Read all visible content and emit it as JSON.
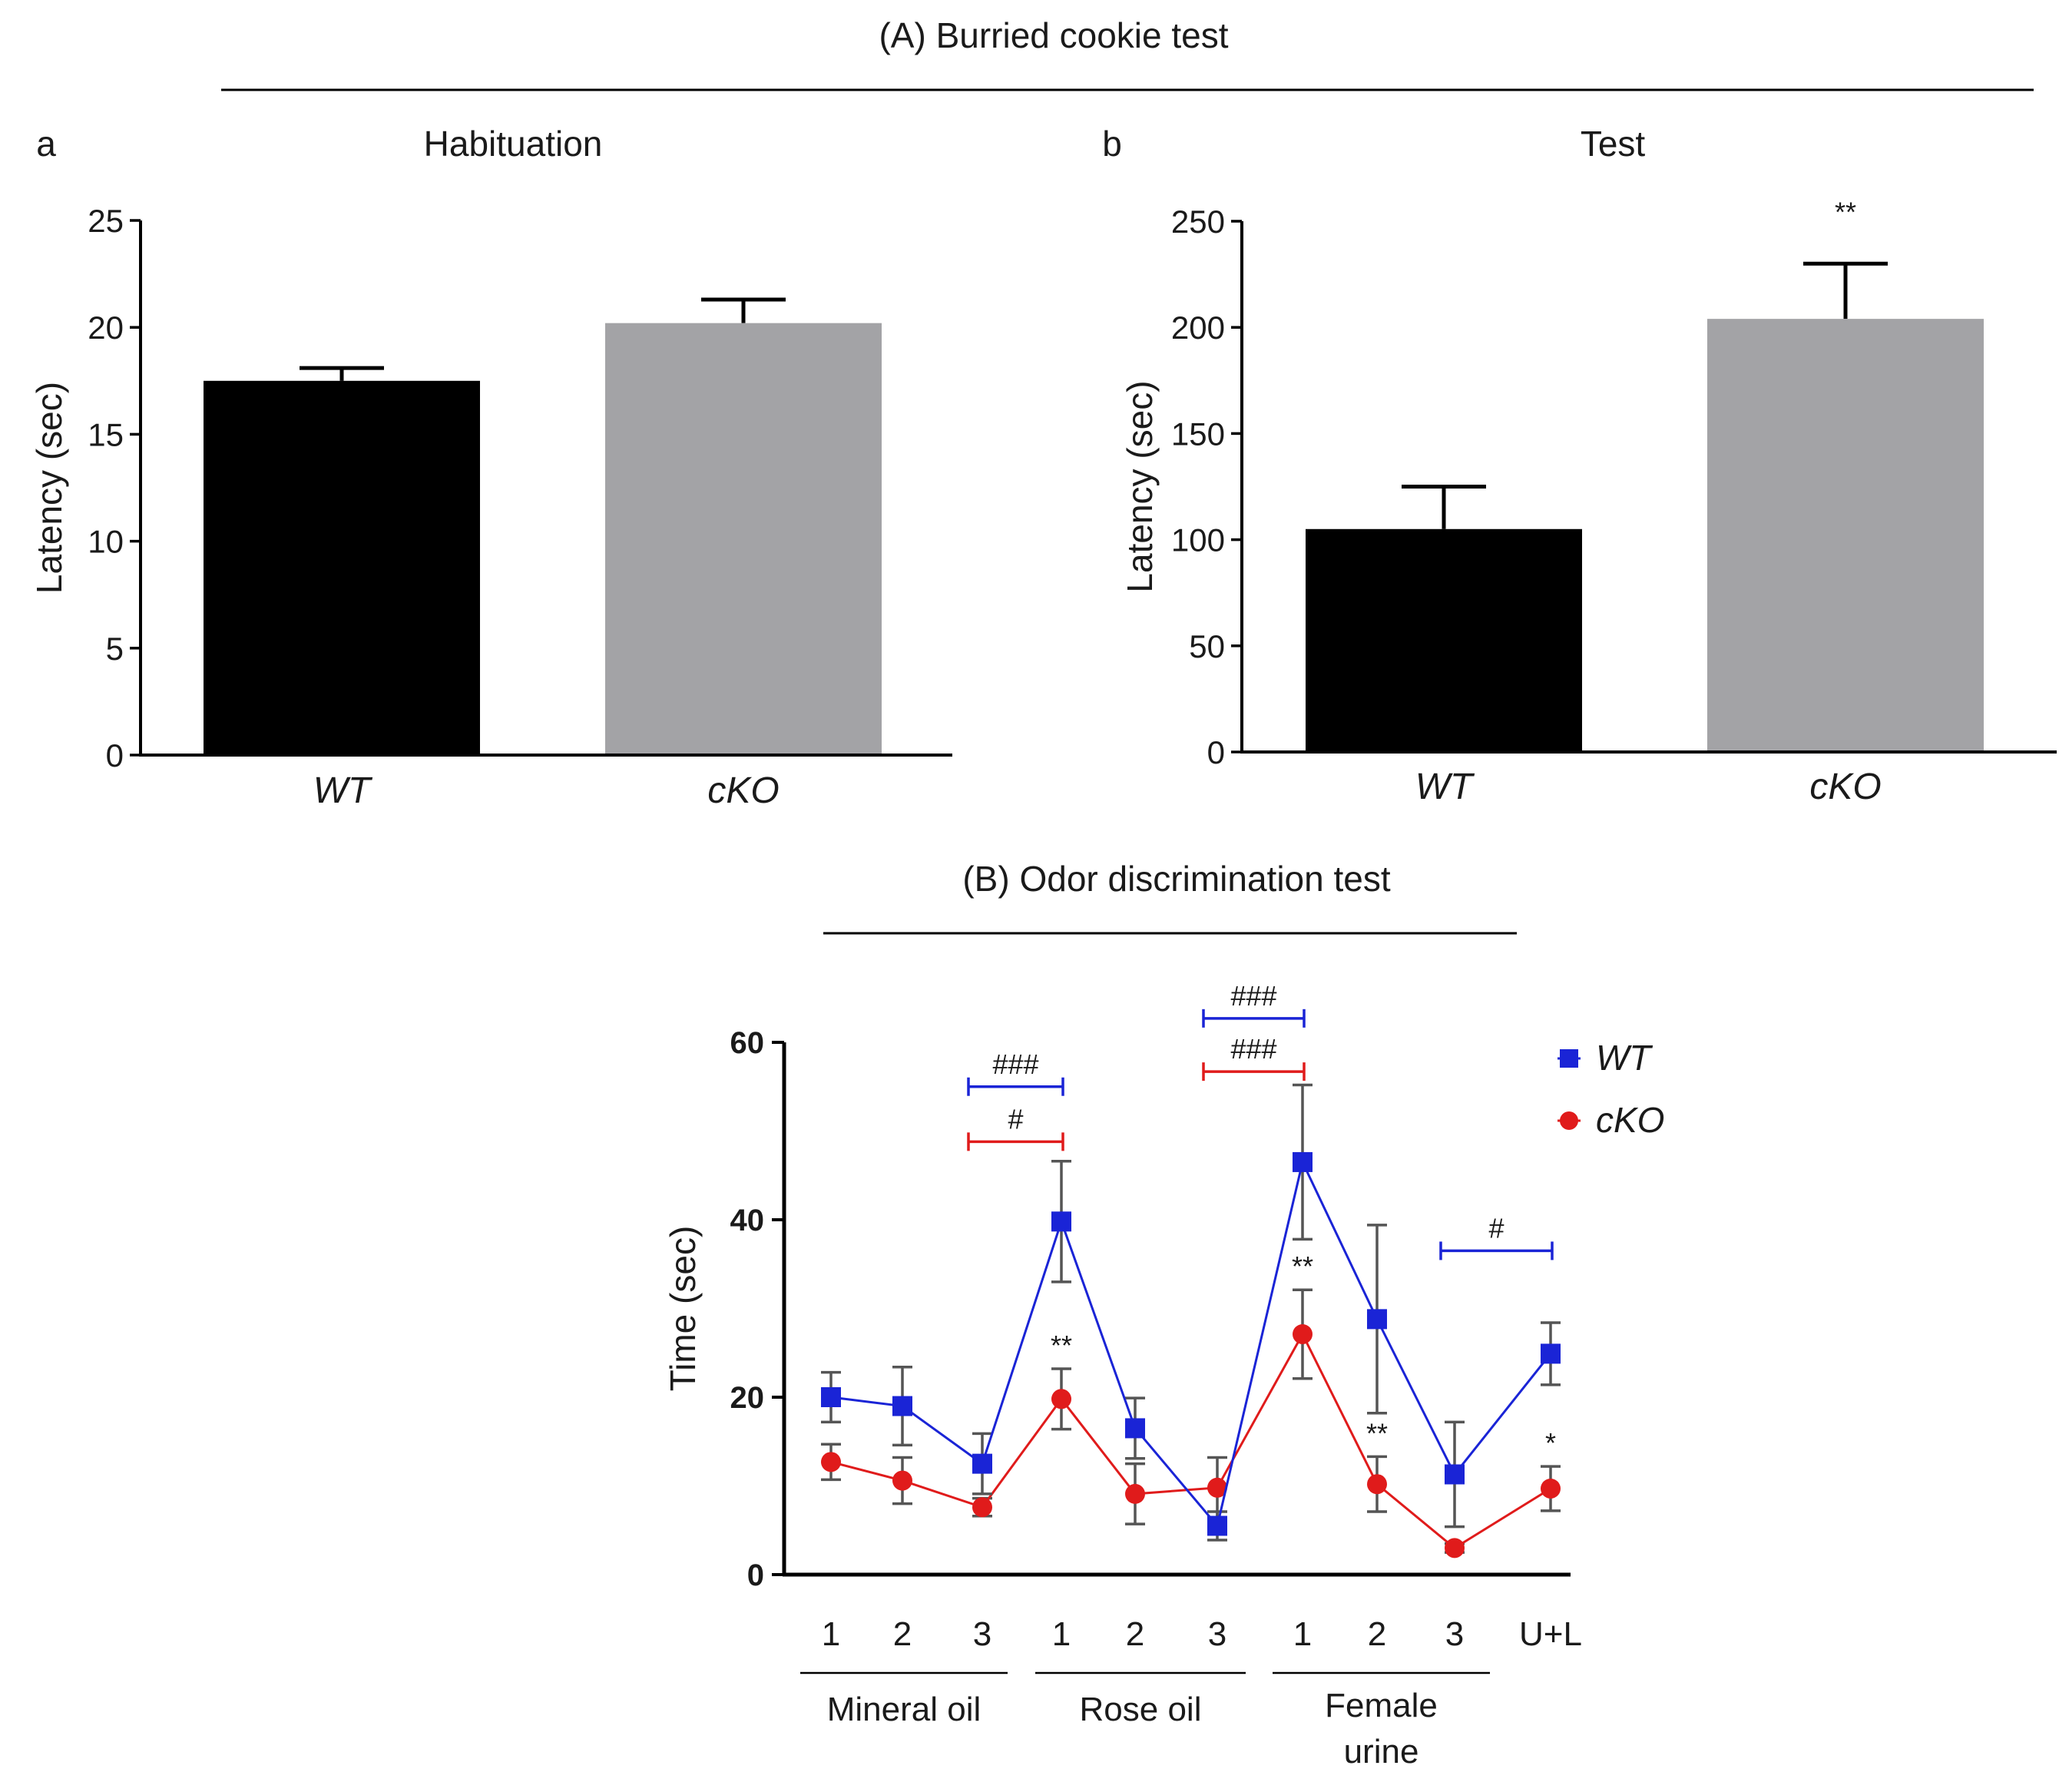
{
  "section_A": {
    "title": "(A) Burried cookie test"
  },
  "section_B": {
    "title": "(B) Odor discrimination test"
  },
  "chart_data": [
    {
      "id": "a",
      "type": "bar",
      "panel_label": "a",
      "title": "Habituation",
      "ylabel": "Latency (sec)",
      "ylim": [
        0,
        25
      ],
      "yticks": [
        0,
        5,
        10,
        15,
        20,
        25
      ],
      "categories": [
        "WT",
        "cKO"
      ],
      "values": [
        17.5,
        20.2
      ],
      "errors": [
        0.6,
        1.1
      ],
      "colors": [
        "#000000",
        "#a3a3a6"
      ],
      "annotations": []
    },
    {
      "id": "b",
      "type": "bar",
      "panel_label": "b",
      "title": "Test",
      "ylabel": "Latency (sec)",
      "ylim": [
        0,
        250
      ],
      "yticks": [
        0,
        50,
        100,
        150,
        200,
        250
      ],
      "categories": [
        "WT",
        "cKO"
      ],
      "values": [
        105,
        204
      ],
      "errors": [
        20,
        26
      ],
      "colors": [
        "#000000",
        "#a3a3a6"
      ],
      "annotations": [
        {
          "category": "cKO",
          "text": "**"
        }
      ]
    },
    {
      "id": "B",
      "type": "line",
      "ylabel": "Time (sec)",
      "ylim": [
        0,
        60
      ],
      "yticks": [
        0,
        20,
        40,
        60
      ],
      "x_labels": [
        "1",
        "2",
        "3",
        "1",
        "2",
        "3",
        "1",
        "2",
        "3",
        "U+L"
      ],
      "groups": [
        {
          "label": "Mineral oil",
          "range": [
            0,
            2
          ]
        },
        {
          "label": "Rose oil",
          "range": [
            3,
            5
          ]
        },
        {
          "label": "Female urine",
          "range": [
            6,
            8
          ]
        }
      ],
      "series": [
        {
          "name": "WT",
          "color": "#1a24d6",
          "marker": "square",
          "values": [
            20,
            19,
            12.5,
            39.8,
            16.5,
            5.5,
            46.5,
            28.8,
            11.3,
            24.9
          ],
          "errors": [
            2.8,
            4.4,
            3.4,
            6.8,
            3.4,
            1.6,
            8.7,
            10.6,
            5.9,
            3.5
          ]
        },
        {
          "name": "cKO",
          "color": "#e01b1b",
          "marker": "circle",
          "values": [
            12.7,
            10.6,
            7.6,
            19.8,
            9.1,
            9.8,
            27.1,
            10.2,
            3.0,
            9.7
          ],
          "errors": [
            2.0,
            2.6,
            1.0,
            3.4,
            3.4,
            3.4,
            5.0,
            3.1,
            0.5,
            2.5
          ]
        }
      ],
      "significance_stars": [
        {
          "index": 3,
          "text": "**"
        },
        {
          "index": 6,
          "text": "**"
        },
        {
          "index": 7,
          "text": "**"
        },
        {
          "index": 9,
          "text": "*"
        }
      ],
      "brackets": [
        {
          "from": 2,
          "to": 3,
          "level": 55,
          "color": "#1a24d6",
          "text": "###"
        },
        {
          "from": 2,
          "to": 3,
          "level": 48.8,
          "color": "#e01b1b",
          "text": "#"
        },
        {
          "from": 5,
          "to": 6,
          "level": 62.7,
          "color": "#1a24d6",
          "text": "###"
        },
        {
          "from": 5,
          "to": 6,
          "level": 56.7,
          "color": "#e01b1b",
          "text": "###"
        },
        {
          "from": 8,
          "to": 9,
          "level": 36.5,
          "color": "#1a24d6",
          "text": "#"
        }
      ]
    }
  ]
}
